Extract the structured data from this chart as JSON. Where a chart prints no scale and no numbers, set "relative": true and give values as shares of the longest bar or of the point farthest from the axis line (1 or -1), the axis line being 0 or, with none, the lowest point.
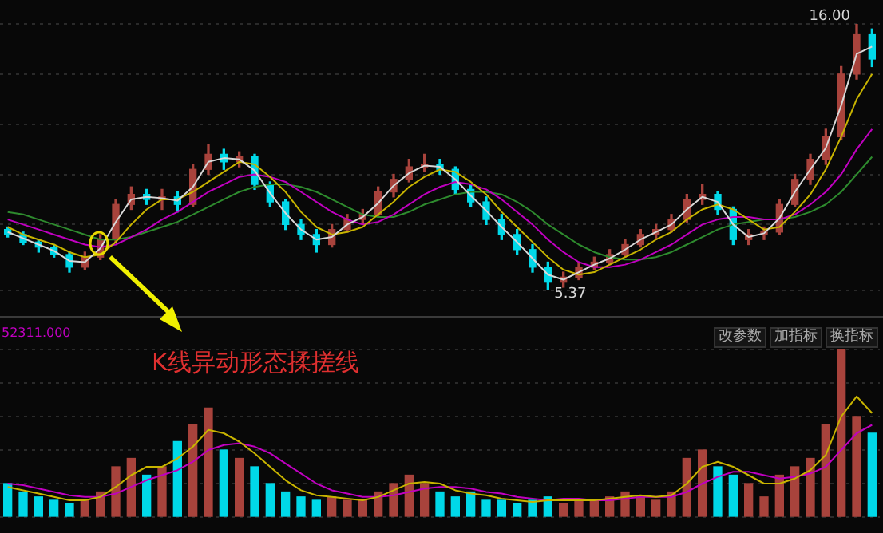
{
  "chart_data": [
    {
      "type": "candlestick",
      "grid": true,
      "tick_labels": false,
      "legend": false,
      "categories": [
        null,
        null,
        null,
        null,
        null,
        null,
        null,
        null,
        null,
        null,
        null,
        null,
        null,
        null,
        null,
        null,
        null,
        null,
        null,
        null,
        null,
        null,
        null,
        null,
        null,
        null,
        null,
        null,
        null,
        null,
        null,
        null,
        null,
        null,
        null,
        null,
        null,
        null,
        null,
        null,
        null,
        null,
        null,
        null,
        null,
        null,
        null,
        null,
        null,
        null,
        null,
        null,
        null,
        null,
        null,
        null,
        null
      ],
      "ohlc": [
        [
          7.8,
          7.9,
          7.5,
          7.6
        ],
        [
          7.6,
          7.7,
          7.2,
          7.3
        ],
        [
          7.3,
          7.4,
          6.9,
          7.1
        ],
        [
          7.1,
          7.2,
          6.7,
          6.8
        ],
        [
          6.8,
          6.9,
          6.1,
          6.3
        ],
        [
          6.3,
          6.9,
          6.2,
          6.7
        ],
        [
          6.7,
          7.6,
          6.6,
          7.4
        ],
        [
          7.4,
          9.0,
          7.3,
          8.8
        ],
        [
          8.8,
          9.5,
          8.6,
          9.2
        ],
        [
          9.2,
          9.4,
          8.8,
          9.0
        ],
        [
          9.0,
          9.4,
          8.6,
          9.1
        ],
        [
          9.1,
          9.3,
          8.5,
          8.8
        ],
        [
          8.8,
          10.4,
          8.7,
          10.2
        ],
        [
          10.2,
          11.2,
          10.0,
          10.8
        ],
        [
          10.8,
          11.0,
          10.2,
          10.5
        ],
        [
          10.5,
          10.9,
          10.3,
          10.7
        ],
        [
          10.7,
          10.8,
          9.4,
          9.6
        ],
        [
          9.6,
          9.7,
          8.7,
          8.9
        ],
        [
          8.9,
          9.0,
          7.8,
          8.0
        ],
        [
          8.0,
          8.2,
          7.4,
          7.6
        ],
        [
          7.6,
          7.8,
          6.9,
          7.2
        ],
        [
          7.2,
          8.0,
          7.1,
          7.8
        ],
        [
          7.8,
          8.4,
          7.7,
          8.2
        ],
        [
          8.2,
          8.6,
          8.0,
          8.4
        ],
        [
          8.4,
          9.5,
          8.3,
          9.3
        ],
        [
          9.3,
          10.0,
          9.1,
          9.8
        ],
        [
          9.8,
          10.6,
          9.7,
          10.3
        ],
        [
          10.3,
          10.8,
          10.1,
          10.4
        ],
        [
          10.4,
          10.6,
          10.0,
          10.2
        ],
        [
          10.2,
          10.3,
          9.2,
          9.4
        ],
        [
          9.4,
          9.6,
          8.7,
          8.9
        ],
        [
          8.9,
          9.1,
          8.0,
          8.2
        ],
        [
          8.2,
          8.4,
          7.4,
          7.6
        ],
        [
          7.6,
          7.8,
          6.8,
          7.0
        ],
        [
          7.0,
          7.2,
          6.1,
          6.3
        ],
        [
          6.3,
          6.5,
          5.37,
          5.7
        ],
        [
          5.7,
          6.1,
          5.5,
          5.9
        ],
        [
          5.9,
          6.5,
          5.8,
          6.3
        ],
        [
          6.3,
          6.7,
          6.2,
          6.5
        ],
        [
          6.5,
          7.0,
          6.4,
          6.8
        ],
        [
          6.8,
          7.4,
          6.7,
          7.2
        ],
        [
          7.2,
          7.8,
          7.1,
          7.6
        ],
        [
          7.6,
          8.0,
          7.4,
          7.8
        ],
        [
          7.8,
          8.4,
          7.7,
          8.2
        ],
        [
          8.2,
          9.2,
          8.1,
          9.0
        ],
        [
          9.0,
          9.6,
          8.8,
          9.2
        ],
        [
          9.2,
          9.3,
          8.4,
          8.6
        ],
        [
          8.6,
          8.7,
          7.2,
          7.4
        ],
        [
          7.4,
          7.8,
          7.2,
          7.6
        ],
        [
          7.6,
          7.9,
          7.4,
          7.7
        ],
        [
          7.7,
          9.0,
          7.6,
          8.8
        ],
        [
          8.8,
          10.0,
          8.7,
          9.8
        ],
        [
          9.8,
          10.8,
          9.6,
          10.6
        ],
        [
          10.6,
          11.8,
          10.4,
          11.5
        ],
        [
          11.5,
          14.3,
          11.4,
          14.0
        ],
        [
          14.0,
          16.0,
          13.8,
          15.6
        ],
        [
          15.6,
          15.8,
          14.3,
          14.6
        ]
      ],
      "colors": [
        "#00d8e8",
        "#00d8e8",
        "#00d8e8",
        "#00d8e8",
        "#00d8e8",
        "#a8433c",
        "#a8433c",
        "#a8433c",
        "#a8433c",
        "#00d8e8",
        "#a8433c",
        "#00d8e8",
        "#a8433c",
        "#a8433c",
        "#00d8e8",
        "#a8433c",
        "#00d8e8",
        "#00d8e8",
        "#00d8e8",
        "#00d8e8",
        "#00d8e8",
        "#a8433c",
        "#a8433c",
        "#a8433c",
        "#a8433c",
        "#a8433c",
        "#a8433c",
        "#a8433c",
        "#00d8e8",
        "#00d8e8",
        "#00d8e8",
        "#00d8e8",
        "#00d8e8",
        "#00d8e8",
        "#00d8e8",
        "#00d8e8",
        "#a8433c",
        "#a8433c",
        "#a8433c",
        "#a8433c",
        "#a8433c",
        "#a8433c",
        "#a8433c",
        "#a8433c",
        "#a8433c",
        "#a8433c",
        "#00d8e8",
        "#00d8e8",
        "#a8433c",
        "#a8433c",
        "#a8433c",
        "#a8433c",
        "#a8433c",
        "#a8433c",
        "#a8433c",
        "#a8433c",
        "#00d8e8"
      ],
      "series": [
        {
          "type": "line",
          "color": "#d8d8d8",
          "values": [
            7.7,
            7.45,
            7.2,
            6.95,
            6.55,
            6.5,
            7.05,
            8.1,
            9.0,
            9.1,
            9.05,
            8.95,
            9.5,
            10.5,
            10.65,
            10.6,
            10.15,
            9.25,
            8.45,
            7.8,
            7.4,
            7.5,
            8.0,
            8.3,
            8.85,
            9.55,
            10.05,
            10.35,
            10.3,
            9.8,
            9.15,
            8.55,
            7.9,
            7.3,
            6.65,
            6.0,
            5.8,
            6.1,
            6.4,
            6.65,
            7.0,
            7.4,
            7.7,
            8.0,
            8.6,
            9.1,
            8.9,
            8.0,
            7.5,
            7.65,
            8.25,
            9.3,
            10.2,
            11.05,
            12.75,
            14.8,
            15.1
          ]
        },
        {
          "type": "line",
          "color": "#c8b400",
          "values": [
            7.9,
            7.6,
            7.4,
            7.2,
            6.9,
            6.7,
            6.8,
            7.3,
            8.0,
            8.6,
            9.0,
            9.0,
            9.3,
            9.7,
            10.1,
            10.5,
            10.4,
            9.9,
            9.3,
            8.5,
            7.9,
            7.6,
            7.7,
            7.9,
            8.4,
            8.9,
            9.5,
            9.9,
            10.2,
            10.1,
            9.7,
            9.2,
            8.5,
            7.9,
            7.3,
            6.7,
            6.2,
            6.0,
            6.1,
            6.4,
            6.7,
            7.0,
            7.4,
            7.7,
            8.2,
            8.6,
            8.8,
            8.6,
            8.2,
            7.8,
            7.9,
            8.5,
            9.2,
            10.2,
            11.5,
            13.0,
            14.0
          ]
        },
        {
          "type": "line",
          "color": "#c000c0",
          "values": [
            8.2,
            8.0,
            7.8,
            7.6,
            7.4,
            7.2,
            7.1,
            7.2,
            7.5,
            7.8,
            8.2,
            8.5,
            8.9,
            9.3,
            9.6,
            9.9,
            10.0,
            9.9,
            9.7,
            9.3,
            8.9,
            8.5,
            8.2,
            8.0,
            8.1,
            8.4,
            8.8,
            9.2,
            9.5,
            9.7,
            9.6,
            9.4,
            9.0,
            8.5,
            8.0,
            7.4,
            6.9,
            6.5,
            6.3,
            6.3,
            6.4,
            6.6,
            6.9,
            7.2,
            7.6,
            8.0,
            8.2,
            8.3,
            8.3,
            8.2,
            8.2,
            8.4,
            8.8,
            9.3,
            10.0,
            11.0,
            11.8
          ]
        },
        {
          "type": "line",
          "color": "#2e8b2e",
          "values": [
            8.5,
            8.4,
            8.2,
            8.0,
            7.8,
            7.6,
            7.4,
            7.4,
            7.5,
            7.7,
            7.9,
            8.1,
            8.4,
            8.7,
            9.0,
            9.3,
            9.5,
            9.6,
            9.6,
            9.5,
            9.3,
            9.0,
            8.7,
            8.4,
            8.3,
            8.3,
            8.5,
            8.8,
            9.0,
            9.2,
            9.3,
            9.3,
            9.2,
            8.9,
            8.5,
            8.0,
            7.6,
            7.2,
            6.9,
            6.7,
            6.6,
            6.6,
            6.7,
            6.9,
            7.2,
            7.5,
            7.8,
            8.0,
            8.1,
            8.2,
            8.2,
            8.3,
            8.5,
            8.8,
            9.3,
            10.0,
            10.7
          ]
        }
      ],
      "annotations": [
        "16.00",
        "5.37",
        "K线异动形态揉搓线"
      ]
    },
    {
      "type": "bar",
      "relative": true,
      "grid": true,
      "tick_labels": false,
      "legend": false,
      "categories": [
        null,
        null,
        null,
        null,
        null,
        null,
        null,
        null,
        null,
        null,
        null,
        null,
        null,
        null,
        null,
        null,
        null,
        null,
        null,
        null,
        null,
        null,
        null,
        null,
        null,
        null,
        null,
        null,
        null,
        null,
        null,
        null,
        null,
        null,
        null,
        null,
        null,
        null,
        null,
        null,
        null,
        null,
        null,
        null,
        null,
        null,
        null,
        null,
        null,
        null,
        null,
        null,
        null,
        null,
        null,
        null,
        null
      ],
      "series": [
        {
          "type": "bar",
          "values": [
            0.2,
            0.15,
            0.12,
            0.1,
            0.08,
            0.1,
            0.15,
            0.3,
            0.35,
            0.25,
            0.3,
            0.45,
            0.55,
            0.65,
            0.4,
            0.35,
            0.3,
            0.2,
            0.15,
            0.12,
            0.1,
            0.12,
            0.1,
            0.1,
            0.15,
            0.2,
            0.25,
            0.2,
            0.15,
            0.12,
            0.15,
            0.1,
            0.1,
            0.08,
            0.1,
            0.12,
            0.08,
            0.1,
            0.1,
            0.12,
            0.15,
            0.12,
            0.1,
            0.15,
            0.35,
            0.4,
            0.3,
            0.25,
            0.2,
            0.12,
            0.25,
            0.3,
            0.35,
            0.55,
            1,
            0.6,
            0.5
          ],
          "colors": [
            "#00d8e8",
            "#00d8e8",
            "#00d8e8",
            "#00d8e8",
            "#00d8e8",
            "#a8433c",
            "#a8433c",
            "#a8433c",
            "#a8433c",
            "#00d8e8",
            "#a8433c",
            "#00d8e8",
            "#a8433c",
            "#a8433c",
            "#00d8e8",
            "#a8433c",
            "#00d8e8",
            "#00d8e8",
            "#00d8e8",
            "#00d8e8",
            "#00d8e8",
            "#a8433c",
            "#a8433c",
            "#a8433c",
            "#a8433c",
            "#a8433c",
            "#a8433c",
            "#a8433c",
            "#00d8e8",
            "#00d8e8",
            "#00d8e8",
            "#00d8e8",
            "#00d8e8",
            "#00d8e8",
            "#00d8e8",
            "#00d8e8",
            "#a8433c",
            "#a8433c",
            "#a8433c",
            "#a8433c",
            "#a8433c",
            "#a8433c",
            "#a8433c",
            "#a8433c",
            "#a8433c",
            "#a8433c",
            "#00d8e8",
            "#00d8e8",
            "#a8433c",
            "#a8433c",
            "#a8433c",
            "#a8433c",
            "#a8433c",
            "#a8433c",
            "#a8433c",
            "#a8433c",
            "#00d8e8"
          ]
        },
        {
          "type": "line",
          "color": "#c8b400",
          "values": [
            0.18,
            0.16,
            0.14,
            0.12,
            0.1,
            0.1,
            0.12,
            0.18,
            0.25,
            0.3,
            0.3,
            0.35,
            0.42,
            0.52,
            0.5,
            0.45,
            0.38,
            0.3,
            0.22,
            0.16,
            0.13,
            0.12,
            0.11,
            0.1,
            0.12,
            0.16,
            0.2,
            0.21,
            0.2,
            0.16,
            0.14,
            0.13,
            0.11,
            0.1,
            0.09,
            0.1,
            0.1,
            0.1,
            0.1,
            0.11,
            0.12,
            0.13,
            0.12,
            0.13,
            0.2,
            0.3,
            0.33,
            0.3,
            0.25,
            0.2,
            0.2,
            0.23,
            0.28,
            0.37,
            0.6,
            0.72,
            0.62
          ]
        },
        {
          "type": "line",
          "color": "#c000c0",
          "values": [
            0.2,
            0.19,
            0.17,
            0.15,
            0.13,
            0.12,
            0.12,
            0.14,
            0.18,
            0.22,
            0.25,
            0.28,
            0.33,
            0.4,
            0.43,
            0.44,
            0.42,
            0.38,
            0.32,
            0.26,
            0.2,
            0.16,
            0.14,
            0.12,
            0.12,
            0.13,
            0.15,
            0.17,
            0.18,
            0.18,
            0.17,
            0.15,
            0.14,
            0.12,
            0.11,
            0.1,
            0.11,
            0.11,
            0.1,
            0.1,
            0.11,
            0.12,
            0.12,
            0.12,
            0.15,
            0.2,
            0.24,
            0.27,
            0.27,
            0.25,
            0.23,
            0.24,
            0.26,
            0.3,
            0.4,
            0.5,
            0.55
          ]
        }
      ],
      "annotations": [
        "52311.000",
        "改参数",
        "加指标",
        "换指标"
      ]
    }
  ]
}
